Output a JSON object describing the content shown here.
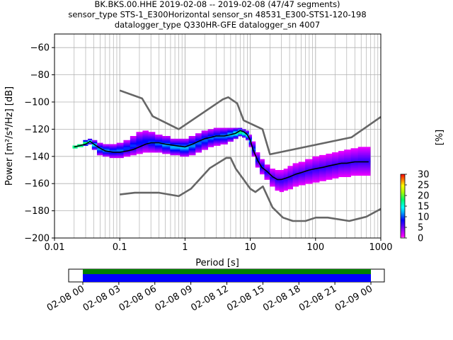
{
  "title": {
    "line1": "BK.BKS.00.HHE   2019-02-08 -- 2019-02-08  (47/47 segments)",
    "line2": "sensor_type STS-1_E300Horizontal sensor_sn 48531_E300-STS1-120-198",
    "line3": "datalogger_type Q330HR-GFE datalogger_sn 4007"
  },
  "chart_data": {
    "type": "heatmap",
    "xlabel": "Period [s]",
    "ylabel": "Power [m²/s⁴/Hz] [dB]",
    "xscale": "log",
    "xlim": [
      0.01,
      1000
    ],
    "ylim": [
      -200,
      -50
    ],
    "grid": true,
    "x_ticks": [
      "0.01",
      "0.1",
      "1",
      "10",
      "100",
      "1000"
    ],
    "y_ticks": [
      "−200",
      "−180",
      "−160",
      "−140",
      "−120",
      "−100",
      "−80",
      "−60"
    ],
    "colorbar": {
      "label": "[%]",
      "range": [
        0,
        30
      ],
      "ticks": [
        "0",
        "5",
        "10",
        "15",
        "20",
        "25",
        "30"
      ],
      "colormap": "pqlx"
    },
    "noise_model_color": "#666666",
    "mean_color": "#000000",
    "series": [
      {
        "name": "",
        "role": "new high noise model",
        "x": [
          0.1,
          0.22,
          0.32,
          0.8,
          3.8,
          4.6,
          6.3,
          7.9,
          15.4,
          20,
          354.8,
          1000
        ],
        "y": [
          -91.5,
          -97.4,
          -110.5,
          -120.0,
          -98.0,
          -96.5,
          -101.0,
          -113.5,
          -120.0,
          -138.5,
          -126.0,
          -111.0
        ]
      },
      {
        "name": "",
        "role": "new low noise model",
        "x": [
          0.1,
          0.17,
          0.4,
          0.8,
          1.24,
          2.4,
          4.3,
          5.0,
          6.0,
          10.0,
          12.0,
          15.6,
          21.9,
          31.6,
          45.0,
          70.0,
          101.0,
          154.0,
          328.0,
          600.0,
          1000.0
        ],
        "y": [
          -168.0,
          -166.7,
          -166.7,
          -169.2,
          -163.7,
          -148.6,
          -141.1,
          -141.1,
          -149.0,
          -163.8,
          -166.2,
          -162.1,
          -177.5,
          -185.0,
          -187.5,
          -187.5,
          -185.0,
          -185.0,
          -187.5,
          -184.4,
          -178.6
        ]
      },
      {
        "name": "",
        "role": "mean PSD",
        "x": [
          0.02,
          0.025,
          0.03,
          0.035,
          0.04,
          0.05,
          0.06,
          0.08,
          0.1,
          0.13,
          0.16,
          0.2,
          0.25,
          0.3,
          0.4,
          0.5,
          0.7,
          1,
          1.3,
          1.6,
          2,
          2.5,
          3,
          4,
          5,
          6,
          7,
          8,
          9,
          10,
          11,
          13,
          15,
          18,
          22,
          26,
          30,
          35,
          40,
          50,
          60,
          80,
          100,
          130,
          160,
          200,
          250,
          300,
          400,
          500,
          650
        ],
        "y": [
          -133,
          -132,
          -131,
          -129,
          -131,
          -134,
          -136,
          -137,
          -137,
          -136,
          -135,
          -133,
          -131,
          -130,
          -130,
          -131,
          -132,
          -133,
          -131,
          -129,
          -127,
          -126,
          -125,
          -125,
          -124,
          -123,
          -121,
          -122,
          -124,
          -128,
          -135,
          -143,
          -148,
          -151,
          -155,
          -157,
          -157,
          -156,
          -155,
          -153,
          -152,
          -150,
          -149,
          -148,
          -147,
          -146,
          -145,
          -145,
          -144,
          -144,
          -144
        ]
      }
    ],
    "heat_columns": [
      {
        "x": 0.02,
        "lo": -134,
        "hi": -132,
        "pk": 30
      },
      {
        "x": 0.025,
        "lo": -133,
        "hi": -131,
        "pk": 30
      },
      {
        "x": 0.03,
        "lo": -132,
        "hi": -128,
        "pk": 22
      },
      {
        "x": 0.035,
        "lo": -131,
        "hi": -127,
        "pk": 18
      },
      {
        "x": 0.04,
        "lo": -135,
        "hi": -128,
        "pk": 15
      },
      {
        "x": 0.05,
        "lo": -139,
        "hi": -130,
        "pk": 12
      },
      {
        "x": 0.06,
        "lo": -140,
        "hi": -131,
        "pk": 12
      },
      {
        "x": 0.08,
        "lo": -141,
        "hi": -131,
        "pk": 11
      },
      {
        "x": 0.1,
        "lo": -141,
        "hi": -130,
        "pk": 11
      },
      {
        "x": 0.13,
        "lo": -140,
        "hi": -128,
        "pk": 10
      },
      {
        "x": 0.16,
        "lo": -139,
        "hi": -125,
        "pk": 10
      },
      {
        "x": 0.2,
        "lo": -138,
        "hi": -122,
        "pk": 9
      },
      {
        "x": 0.25,
        "lo": -137,
        "hi": -121,
        "pk": 9
      },
      {
        "x": 0.3,
        "lo": -137,
        "hi": -122,
        "pk": 10
      },
      {
        "x": 0.4,
        "lo": -137,
        "hi": -124,
        "pk": 11
      },
      {
        "x": 0.5,
        "lo": -138,
        "hi": -125,
        "pk": 12
      },
      {
        "x": 0.7,
        "lo": -139,
        "hi": -127,
        "pk": 13
      },
      {
        "x": 1,
        "lo": -140,
        "hi": -127,
        "pk": 13
      },
      {
        "x": 1.3,
        "lo": -139,
        "hi": -125,
        "pk": 12
      },
      {
        "x": 1.6,
        "lo": -137,
        "hi": -123,
        "pk": 11
      },
      {
        "x": 2,
        "lo": -135,
        "hi": -121,
        "pk": 11
      },
      {
        "x": 2.5,
        "lo": -133,
        "hi": -120,
        "pk": 11
      },
      {
        "x": 3,
        "lo": -132,
        "hi": -119,
        "pk": 11
      },
      {
        "x": 4,
        "lo": -131,
        "hi": -119,
        "pk": 12
      },
      {
        "x": 5,
        "lo": -129,
        "hi": -119,
        "pk": 14
      },
      {
        "x": 6,
        "lo": -127,
        "hi": -119,
        "pk": 17
      },
      {
        "x": 7,
        "lo": -125,
        "hi": -119,
        "pk": 20
      },
      {
        "x": 8,
        "lo": -126,
        "hi": -120,
        "pk": 18
      },
      {
        "x": 9,
        "lo": -128,
        "hi": -121,
        "pk": 15
      },
      {
        "x": 10,
        "lo": -133,
        "hi": -124,
        "pk": 12
      },
      {
        "x": 11,
        "lo": -140,
        "hi": -129,
        "pk": 10
      },
      {
        "x": 13,
        "lo": -148,
        "hi": -137,
        "pk": 9
      },
      {
        "x": 15,
        "lo": -153,
        "hi": -142,
        "pk": 9
      },
      {
        "x": 18,
        "lo": -157,
        "hi": -146,
        "pk": 8
      },
      {
        "x": 22,
        "lo": -162,
        "hi": -149,
        "pk": 7
      },
      {
        "x": 26,
        "lo": -165,
        "hi": -150,
        "pk": 7
      },
      {
        "x": 30,
        "lo": -166,
        "hi": -150,
        "pk": 7
      },
      {
        "x": 35,
        "lo": -165,
        "hi": -149,
        "pk": 7
      },
      {
        "x": 40,
        "lo": -164,
        "hi": -147,
        "pk": 7
      },
      {
        "x": 50,
        "lo": -162,
        "hi": -145,
        "pk": 7
      },
      {
        "x": 60,
        "lo": -161,
        "hi": -144,
        "pk": 7
      },
      {
        "x": 80,
        "lo": -160,
        "hi": -142,
        "pk": 7
      },
      {
        "x": 100,
        "lo": -159,
        "hi": -140,
        "pk": 7
      },
      {
        "x": 130,
        "lo": -158,
        "hi": -139,
        "pk": 7
      },
      {
        "x": 160,
        "lo": -157,
        "hi": -138,
        "pk": 7
      },
      {
        "x": 200,
        "lo": -156,
        "hi": -137,
        "pk": 7
      },
      {
        "x": 250,
        "lo": -155,
        "hi": -136,
        "pk": 7
      },
      {
        "x": 300,
        "lo": -155,
        "hi": -135,
        "pk": 7
      },
      {
        "x": 400,
        "lo": -154,
        "hi": -134,
        "pk": 7
      },
      {
        "x": 500,
        "lo": -154,
        "hi": -133,
        "pk": 7
      },
      {
        "x": 650,
        "lo": -154,
        "hi": -133,
        "pk": 7
      }
    ]
  },
  "timeline": {
    "tick_labels": [
      "02-08 00",
      "02-08 03",
      "02-08 06",
      "02-08 09",
      "02-08 12",
      "02-08 15",
      "02-08 18",
      "02-08 21",
      "02-09 00"
    ],
    "data_color": "#0000ff",
    "used_color": "#008000"
  }
}
